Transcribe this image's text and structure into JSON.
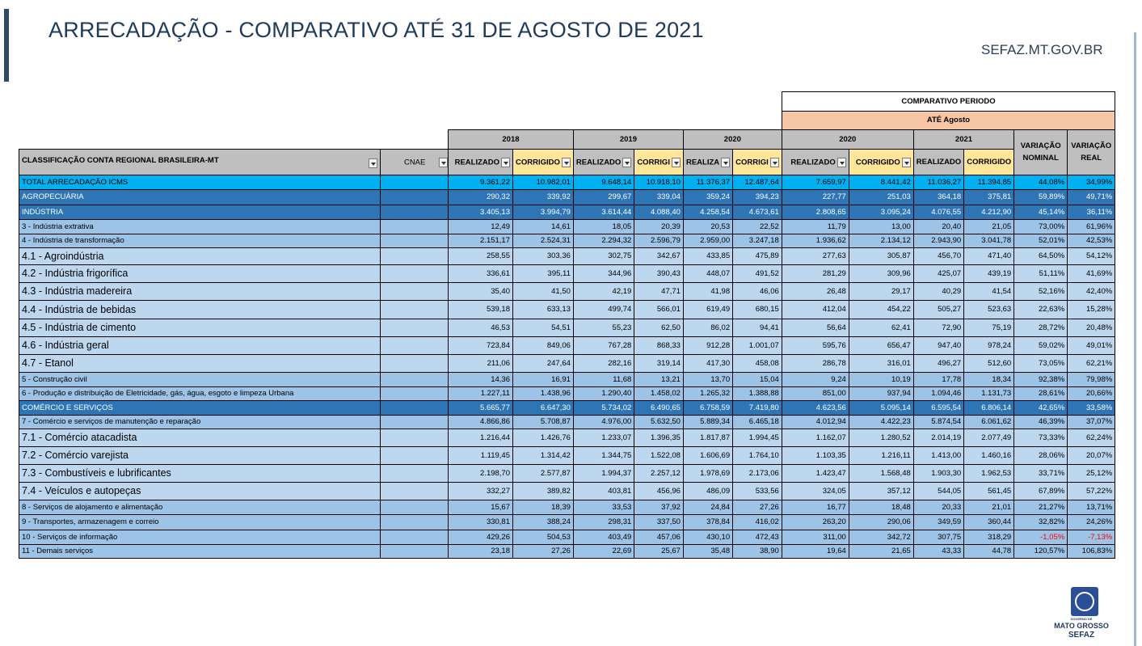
{
  "header": {
    "title": "ARRECADAÇÃO - COMPARATIVO ATÉ 31 DE AGOSTO DE 2021",
    "site": "SEFAZ.MT.GOV.BR"
  },
  "colors": {
    "accent": "#2f4a68",
    "total_row": "#00b0f0",
    "sector_row": "#2e75b6",
    "sub_row": "#9dc3e6",
    "item_row": "#bdd7ee",
    "corrigido_header": "#ffe699",
    "period_header": "#f7c6a5",
    "negative": "#ff0000"
  },
  "table": {
    "comparativo_title": "COMPARATIVO PERIODO",
    "periodo": "ATÉ Agosto",
    "years": [
      "2018",
      "2019",
      "2020",
      "2020",
      "2021"
    ],
    "var_nominal": "VARIAÇÃO NOMINAL",
    "var_real": "VARIAÇÃO REAL",
    "col_class": "CLASSIFICAÇÃO CONTA REGIONAL BRASILEIRA-MT",
    "col_cnae": "CNAE",
    "sub_headers": [
      "REALIZADO",
      "CORRIGIDO",
      "REALIZADO",
      "CORRIGI",
      "REALIZA",
      "CORRIGI",
      "REALIZADO",
      "CORRIGIDO",
      "REALIZADO",
      "CORRIGIDO"
    ],
    "rows": [
      {
        "type": "total",
        "label": "TOTAL ARRECADAÇÃO ICMS",
        "v": [
          "9.361,22",
          "10.982,01",
          "9.648,14",
          "10.918,10",
          "11.376,37",
          "12.487,64",
          "7.659,97",
          "8.441,42",
          "11.036,27",
          "11.394,85",
          "44,08%",
          "34,99%"
        ]
      },
      {
        "type": "sector",
        "label": "AGROPECUÁRIA",
        "v": [
          "290,32",
          "339,92",
          "299,67",
          "339,04",
          "359,24",
          "394,23",
          "227,77",
          "251,03",
          "364,18",
          "375,81",
          "59,89%",
          "49,71%"
        ]
      },
      {
        "type": "sector",
        "label": "INDÚSTRIA",
        "v": [
          "3.405,13",
          "3.994,79",
          "3.614,44",
          "4.088,40",
          "4.258,54",
          "4.673,61",
          "2.808,65",
          "3.095,24",
          "4.076,55",
          "4.212,90",
          "45,14%",
          "36,11%"
        ]
      },
      {
        "type": "sub",
        "label": "3 - Indústria extrativa",
        "v": [
          "12,49",
          "14,61",
          "18,05",
          "20,39",
          "20,53",
          "22,52",
          "11,79",
          "13,00",
          "20,40",
          "21,05",
          "73,00%",
          "61,96%"
        ]
      },
      {
        "type": "sub",
        "label": "4 - Indústria de transformação",
        "v": [
          "2.151,17",
          "2.524,31",
          "2.294,32",
          "2.596,79",
          "2.959,00",
          "3.247,18",
          "1.936,62",
          "2.134,12",
          "2.943,90",
          "3.041,78",
          "52,01%",
          "42,53%"
        ]
      },
      {
        "type": "item",
        "label": "4.1 - Agroindústria",
        "v": [
          "258,55",
          "303,36",
          "302,75",
          "342,67",
          "433,85",
          "475,89",
          "277,63",
          "305,87",
          "456,70",
          "471,40",
          "64,50%",
          "54,12%"
        ]
      },
      {
        "type": "item",
        "label": "4.2 - Indústria frigorífica",
        "v": [
          "336,61",
          "395,11",
          "344,96",
          "390,43",
          "448,07",
          "491,52",
          "281,29",
          "309,96",
          "425,07",
          "439,19",
          "51,11%",
          "41,69%"
        ]
      },
      {
        "type": "item",
        "label": "4.3 - Indústria madereira",
        "v": [
          "35,40",
          "41,50",
          "42,19",
          "47,71",
          "41,98",
          "46,06",
          "26,48",
          "29,17",
          "40,29",
          "41,54",
          "52,16%",
          "42,40%"
        ]
      },
      {
        "type": "item",
        "label": "4.4 - Indústria de bebidas",
        "v": [
          "539,18",
          "633,13",
          "499,74",
          "566,01",
          "619,49",
          "680,15",
          "412,04",
          "454,22",
          "505,27",
          "523,63",
          "22,63%",
          "15,28%"
        ]
      },
      {
        "type": "item",
        "label": "4.5 - Indústria de cimento",
        "v": [
          "46,53",
          "54,51",
          "55,23",
          "62,50",
          "86,02",
          "94,41",
          "56,64",
          "62,41",
          "72,90",
          "75,19",
          "28,72%",
          "20,48%"
        ]
      },
      {
        "type": "item",
        "label": "4.6 - Indústria geral",
        "v": [
          "723,84",
          "849,06",
          "767,28",
          "868,33",
          "912,28",
          "1.001,07",
          "595,76",
          "656,47",
          "947,40",
          "978,24",
          "59,02%",
          "49,01%"
        ]
      },
      {
        "type": "item",
        "label": "4.7 - Etanol",
        "v": [
          "211,06",
          "247,64",
          "282,16",
          "319,14",
          "417,30",
          "458,08",
          "286,78",
          "316,01",
          "496,27",
          "512,60",
          "73,05%",
          "62,21%"
        ]
      },
      {
        "type": "sub",
        "label": "5 - Construção civil",
        "v": [
          "14,36",
          "16,91",
          "11,68",
          "13,21",
          "13,70",
          "15,04",
          "9,24",
          "10,19",
          "17,78",
          "18,34",
          "92,38%",
          "79,98%"
        ]
      },
      {
        "type": "sub",
        "label": "6 - Produção e distribuição de Eletricidade, gás, água, esgoto e limpeza Urbana",
        "v": [
          "1.227,11",
          "1.438,96",
          "1.290,40",
          "1.458,02",
          "1.265,32",
          "1.388,88",
          "851,00",
          "937,94",
          "1.094,46",
          "1.131,73",
          "28,61%",
          "20,66%"
        ]
      },
      {
        "type": "sector",
        "label": "COMÉRCIO E SERVIÇOS",
        "v": [
          "5.665,77",
          "6.647,30",
          "5.734,02",
          "6.490,65",
          "6.758,59",
          "7.419,80",
          "4.623,56",
          "5.095,14",
          "6.595,54",
          "6.806,14",
          "42,65%",
          "33,58%"
        ]
      },
      {
        "type": "sub",
        "label": "7 - Comércio e serviços de manutenção e reparação",
        "v": [
          "4.866,86",
          "5.708,87",
          "4.976,00",
          "5.632,50",
          "5.889,34",
          "6.465,18",
          "4.012,94",
          "4.422,23",
          "5.874,54",
          "6.061,62",
          "46,39%",
          "37,07%"
        ]
      },
      {
        "type": "item",
        "label": "7.1 - Comércio atacadista",
        "v": [
          "1.216,44",
          "1.426,76",
          "1.233,07",
          "1.396,35",
          "1.817,87",
          "1.994,45",
          "1.162,07",
          "1.280,52",
          "2.014,19",
          "2.077,49",
          "73,33%",
          "62,24%"
        ]
      },
      {
        "type": "item",
        "label": "7.2 - Comércio varejista",
        "v": [
          "1.119,45",
          "1.314,42",
          "1.344,75",
          "1.522,08",
          "1.606,69",
          "1.764,10",
          "1.103,35",
          "1.216,11",
          "1.413,00",
          "1.460,16",
          "28,06%",
          "20,07%"
        ]
      },
      {
        "type": "item",
        "label": "7.3 - Combustíveis e lubrificantes",
        "v": [
          "2.198,70",
          "2.577,87",
          "1.994,37",
          "2.257,12",
          "1.978,69",
          "2.173,06",
          "1.423,47",
          "1.568,48",
          "1.903,30",
          "1.962,53",
          "33,71%",
          "25,12%"
        ]
      },
      {
        "type": "item",
        "label": "7.4 - Veículos e autopeças",
        "v": [
          "332,27",
          "389,82",
          "403,81",
          "456,96",
          "486,09",
          "533,56",
          "324,05",
          "357,12",
          "544,05",
          "561,45",
          "67,89%",
          "57,22%"
        ]
      },
      {
        "type": "sub",
        "label": "8 - Serviços de alojamento e alimentação",
        "v": [
          "15,67",
          "18,39",
          "33,53",
          "37,92",
          "24,84",
          "27,26",
          "16,77",
          "18,48",
          "20,33",
          "21,01",
          "21,27%",
          "13,71%"
        ]
      },
      {
        "type": "sub",
        "label": "9 - Transportes, armazenagem e correio",
        "v": [
          "330,81",
          "388,24",
          "298,31",
          "337,50",
          "378,84",
          "416,02",
          "263,20",
          "290,06",
          "349,59",
          "360,44",
          "32,82%",
          "24,26%"
        ]
      },
      {
        "type": "sub",
        "label": "10 - Serviços de informação",
        "v": [
          "429,26",
          "504,53",
          "403,49",
          "457,06",
          "430,10",
          "472,43",
          "311,00",
          "342,72",
          "307,75",
          "318,29",
          "-1,05%",
          "-7,13%"
        ]
      },
      {
        "type": "sub",
        "label": "11 - Demais serviços",
        "v": [
          "23,18",
          "27,26",
          "22,69",
          "25,67",
          "35,48",
          "38,90",
          "19,64",
          "21,65",
          "43,33",
          "44,78",
          "120,57%",
          "106,83%"
        ]
      }
    ]
  },
  "logo": {
    "line1": "GOVERNO DE",
    "line2": "MATO GROSSO",
    "line3": "SEFAZ",
    "icon": "state-seal-icon"
  }
}
